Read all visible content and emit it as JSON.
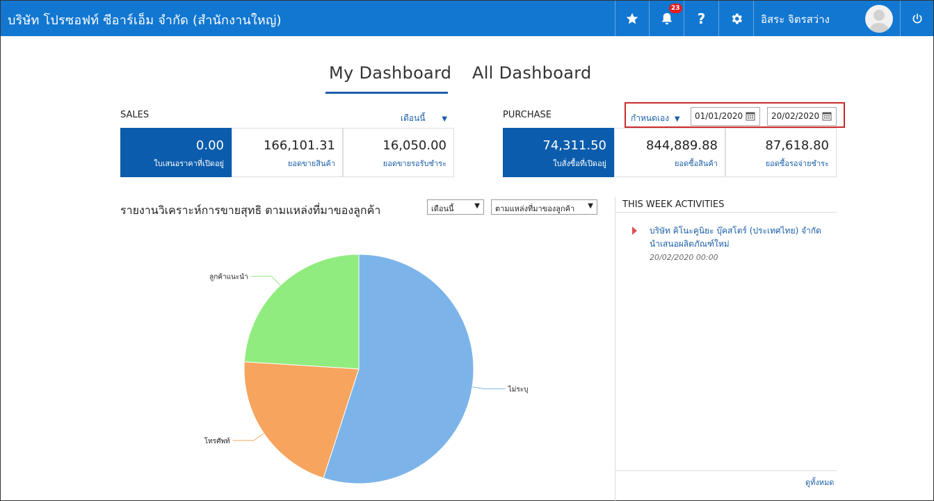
{
  "header": {
    "company": "บริษัท โปรซอฟท์ ซีอาร์เอ็ม จำกัด (สำนักงานใหญ่)",
    "notification_count": "23",
    "help_label": "?",
    "user_name": "อิสระ จิตรสว่าง"
  },
  "tabs": [
    "My Dashboard",
    "All Dashboard"
  ],
  "sales": {
    "title": "SALES",
    "period": "เดือนนี้",
    "cards": [
      {
        "value": "0.00",
        "label": "ใบเสนอราคาที่เปิดอยู่"
      },
      {
        "value": "166,101.31",
        "label": "ยอดขายสินค้า"
      },
      {
        "value": "16,050.00",
        "label": "ยอดขายรอรับชำระ"
      }
    ]
  },
  "purchase": {
    "title": "PURCHASE",
    "period": "กำหนดเอง",
    "date_from": "01/01/2020",
    "date_to": "20/02/2020",
    "cards": [
      {
        "value": "74,311.50",
        "label": "ใบสั่งซื้อที่เปิดอยู่"
      },
      {
        "value": "844,889.88",
        "label": "ยอดซื้อสินค้า"
      },
      {
        "value": "87,618.80",
        "label": "ยอดซื้อรอจ่ายชำระ"
      }
    ]
  },
  "report": {
    "title": "รายงานวิเคราะห์การขายสุทธิ ตามแหล่งที่มาของลูกค้า",
    "period_select": "เดือนนี้",
    "group_select": "ตามแหล่งที่มาของลูกค้า"
  },
  "chart_data": {
    "type": "pie",
    "categories": [
      "ไม่ระบุ",
      "โทรศัพท์",
      "ลูกค้าแนะนำ"
    ],
    "values": [
      55,
      21,
      24
    ],
    "colors": [
      "#7cb4ea",
      "#f6a45e",
      "#90ec7e"
    ]
  },
  "activities": {
    "title": "THIS WEEK ACTIVITIES",
    "items": [
      {
        "text": "บริษัท คิโนะคูนิยะ บุ๊คสโตร์ (ประเทศไทย) จำกัด นำเสนอผลิตภัณฑ์ใหม่",
        "date": "20/02/2020 00:00"
      }
    ],
    "view_all": "ดูทั้งหมด"
  }
}
